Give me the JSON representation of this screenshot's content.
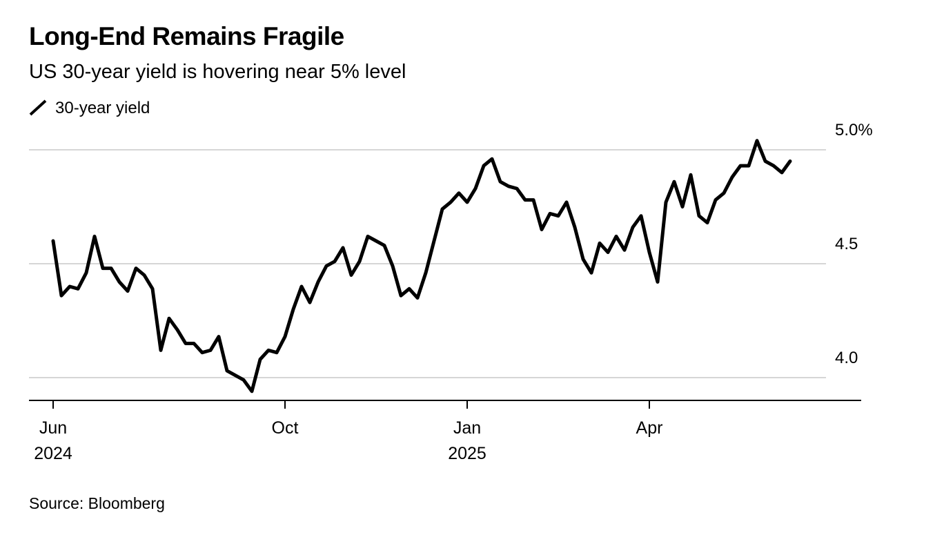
{
  "chart_data": {
    "type": "line",
    "title": "Long-End Remains Fragile",
    "subtitle": "US 30-year yield is hovering near 5% level",
    "source": "Source: Bloomberg",
    "categories": [
      "Jun\n2024",
      null,
      null,
      null,
      null,
      null,
      null,
      null,
      null,
      null,
      null,
      null,
      null,
      null,
      null,
      null,
      null,
      null,
      null,
      null,
      null,
      null,
      null,
      null,
      null,
      null,
      null,
      null,
      "Oct",
      null,
      null,
      null,
      null,
      null,
      null,
      null,
      null,
      null,
      null,
      null,
      null,
      null,
      null,
      null,
      null,
      null,
      null,
      null,
      null,
      null,
      "Jan\n2025",
      null,
      null,
      null,
      null,
      null,
      null,
      null,
      null,
      null,
      null,
      null,
      null,
      null,
      null,
      null,
      null,
      null,
      null,
      null,
      null,
      null,
      "Apr",
      null,
      null,
      null,
      null,
      null,
      null,
      null,
      null,
      null,
      null,
      null,
      null,
      null,
      null,
      null,
      null,
      null
    ],
    "series": [
      {
        "name": "30-year yield",
        "color": "#000000",
        "values": [
          4.6,
          4.36,
          4.4,
          4.39,
          4.46,
          4.62,
          4.48,
          4.48,
          4.42,
          4.38,
          4.48,
          4.45,
          4.39,
          4.12,
          4.26,
          4.21,
          4.15,
          4.15,
          4.11,
          4.12,
          4.18,
          4.03,
          4.01,
          3.99,
          3.94,
          4.08,
          4.12,
          4.11,
          4.18,
          4.3,
          4.4,
          4.33,
          4.42,
          4.49,
          4.51,
          4.57,
          4.45,
          4.51,
          4.62,
          4.6,
          4.58,
          4.49,
          4.36,
          4.39,
          4.35,
          4.46,
          4.6,
          4.74,
          4.77,
          4.81,
          4.77,
          4.83,
          4.93,
          4.96,
          4.86,
          4.84,
          4.83,
          4.78,
          4.78,
          4.65,
          4.72,
          4.71,
          4.77,
          4.66,
          4.52,
          4.46,
          4.59,
          4.55,
          4.62,
          4.56,
          4.66,
          4.71,
          4.55,
          4.42,
          4.77,
          4.86,
          4.75,
          4.89,
          4.71,
          4.68,
          4.78,
          4.81,
          4.88,
          4.93,
          4.93,
          5.04,
          4.95,
          4.93,
          4.9,
          4.95
        ]
      }
    ],
    "ylim": [
      3.9,
      5.12
    ],
    "yticks": [
      {
        "value": 4,
        "label": "4.0"
      },
      4.5,
      {
        "value": 5,
        "label": "5.0%"
      }
    ],
    "grid": true
  }
}
